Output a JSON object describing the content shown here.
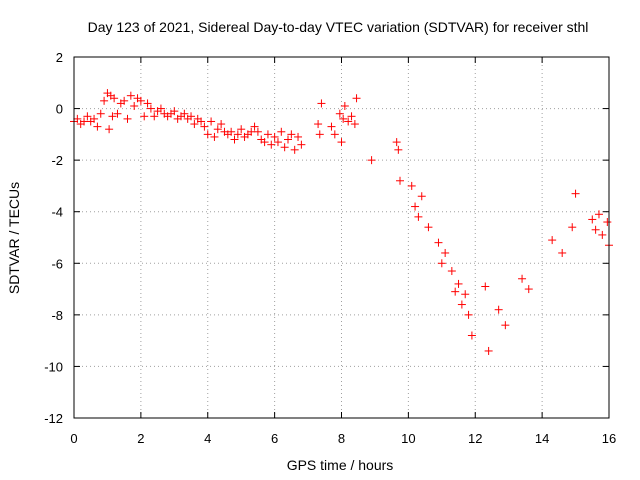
{
  "chart_data": {
    "type": "scatter",
    "title": "Day 123 of 2021, Sidereal Day-to-day VTEC variation (SDTVAR) for receiver sthl",
    "xlabel": "GPS time / hours",
    "ylabel": "SDTVAR / TECUs",
    "xlim": [
      0,
      16
    ],
    "ylim": [
      -12,
      2
    ],
    "xticks": [
      "0",
      "2",
      "4",
      "6",
      "8",
      "10",
      "12",
      "14",
      "16"
    ],
    "yticks": [
      "2",
      "0",
      "-2",
      "-4",
      "-6",
      "-8",
      "-10",
      "-12"
    ],
    "grid": true,
    "marker": "plus",
    "color": "#ff0000",
    "series": [
      {
        "name": "SDTVAR",
        "x": [
          0.0,
          0.1,
          0.2,
          0.3,
          0.4,
          0.5,
          0.6,
          0.7,
          0.8,
          0.9,
          1.0,
          1.05,
          1.1,
          1.15,
          1.2,
          1.3,
          1.4,
          1.5,
          1.6,
          1.7,
          1.8,
          1.9,
          2.0,
          2.1,
          2.2,
          2.3,
          2.4,
          2.5,
          2.6,
          2.7,
          2.8,
          2.9,
          3.0,
          3.1,
          3.2,
          3.3,
          3.4,
          3.5,
          3.6,
          3.7,
          3.8,
          3.9,
          4.0,
          4.1,
          4.2,
          4.3,
          4.4,
          4.5,
          4.6,
          4.7,
          4.8,
          4.9,
          5.0,
          5.1,
          5.2,
          5.3,
          5.4,
          5.5,
          5.6,
          5.7,
          5.8,
          5.9,
          6.0,
          6.1,
          6.2,
          6.3,
          6.4,
          6.5,
          6.6,
          6.7,
          6.8,
          7.3,
          7.35,
          7.4,
          7.7,
          7.8,
          7.95,
          8.0,
          8.05,
          8.1,
          8.2,
          8.3,
          8.4,
          8.45,
          8.9,
          9.65,
          9.7,
          9.75,
          10.1,
          10.2,
          10.3,
          10.4,
          10.6,
          10.9,
          11.0,
          11.1,
          11.3,
          11.4,
          11.5,
          11.6,
          11.7,
          11.8,
          11.9,
          12.3,
          12.4,
          12.7,
          12.9,
          13.4,
          13.6,
          14.3,
          14.6,
          14.9,
          15.0,
          15.5,
          15.6,
          15.7,
          15.8,
          15.95,
          16.0
        ],
        "y": [
          -0.5,
          -0.4,
          -0.6,
          -0.5,
          -0.3,
          -0.5,
          -0.4,
          -0.7,
          -0.2,
          0.3,
          0.6,
          -0.8,
          0.5,
          -0.3,
          0.4,
          -0.2,
          0.2,
          0.3,
          -0.4,
          0.5,
          0.1,
          0.4,
          0.3,
          -0.3,
          0.2,
          0.0,
          -0.3,
          -0.1,
          0.0,
          -0.2,
          -0.3,
          -0.2,
          -0.1,
          -0.4,
          -0.3,
          -0.2,
          -0.4,
          -0.3,
          -0.6,
          -0.4,
          -0.5,
          -0.7,
          -1.0,
          -0.5,
          -1.1,
          -0.8,
          -0.6,
          -0.9,
          -1.0,
          -0.9,
          -1.2,
          -1.0,
          -0.8,
          -1.1,
          -1.0,
          -0.9,
          -0.7,
          -0.9,
          -1.2,
          -1.3,
          -1.0,
          -1.4,
          -1.1,
          -1.3,
          -0.9,
          -1.5,
          -1.2,
          -1.0,
          -1.6,
          -1.1,
          -1.4,
          -0.6,
          -1.0,
          0.2,
          -0.7,
          -1.0,
          -0.2,
          -1.3,
          -0.4,
          0.1,
          -0.5,
          -0.3,
          -0.6,
          0.4,
          -2.0,
          -1.3,
          -1.6,
          -2.8,
          -3.0,
          -3.8,
          -4.2,
          -3.4,
          -4.6,
          -5.2,
          -6.0,
          -5.6,
          -6.3,
          -7.1,
          -6.8,
          -7.6,
          -7.2,
          -8.0,
          -8.8,
          -6.9,
          -9.4,
          -7.8,
          -8.4,
          -6.6,
          -7.0,
          -5.1,
          -5.6,
          -4.6,
          -3.3,
          -4.3,
          -4.7,
          -4.1,
          -4.9,
          -4.4,
          -5.3
        ]
      }
    ]
  }
}
